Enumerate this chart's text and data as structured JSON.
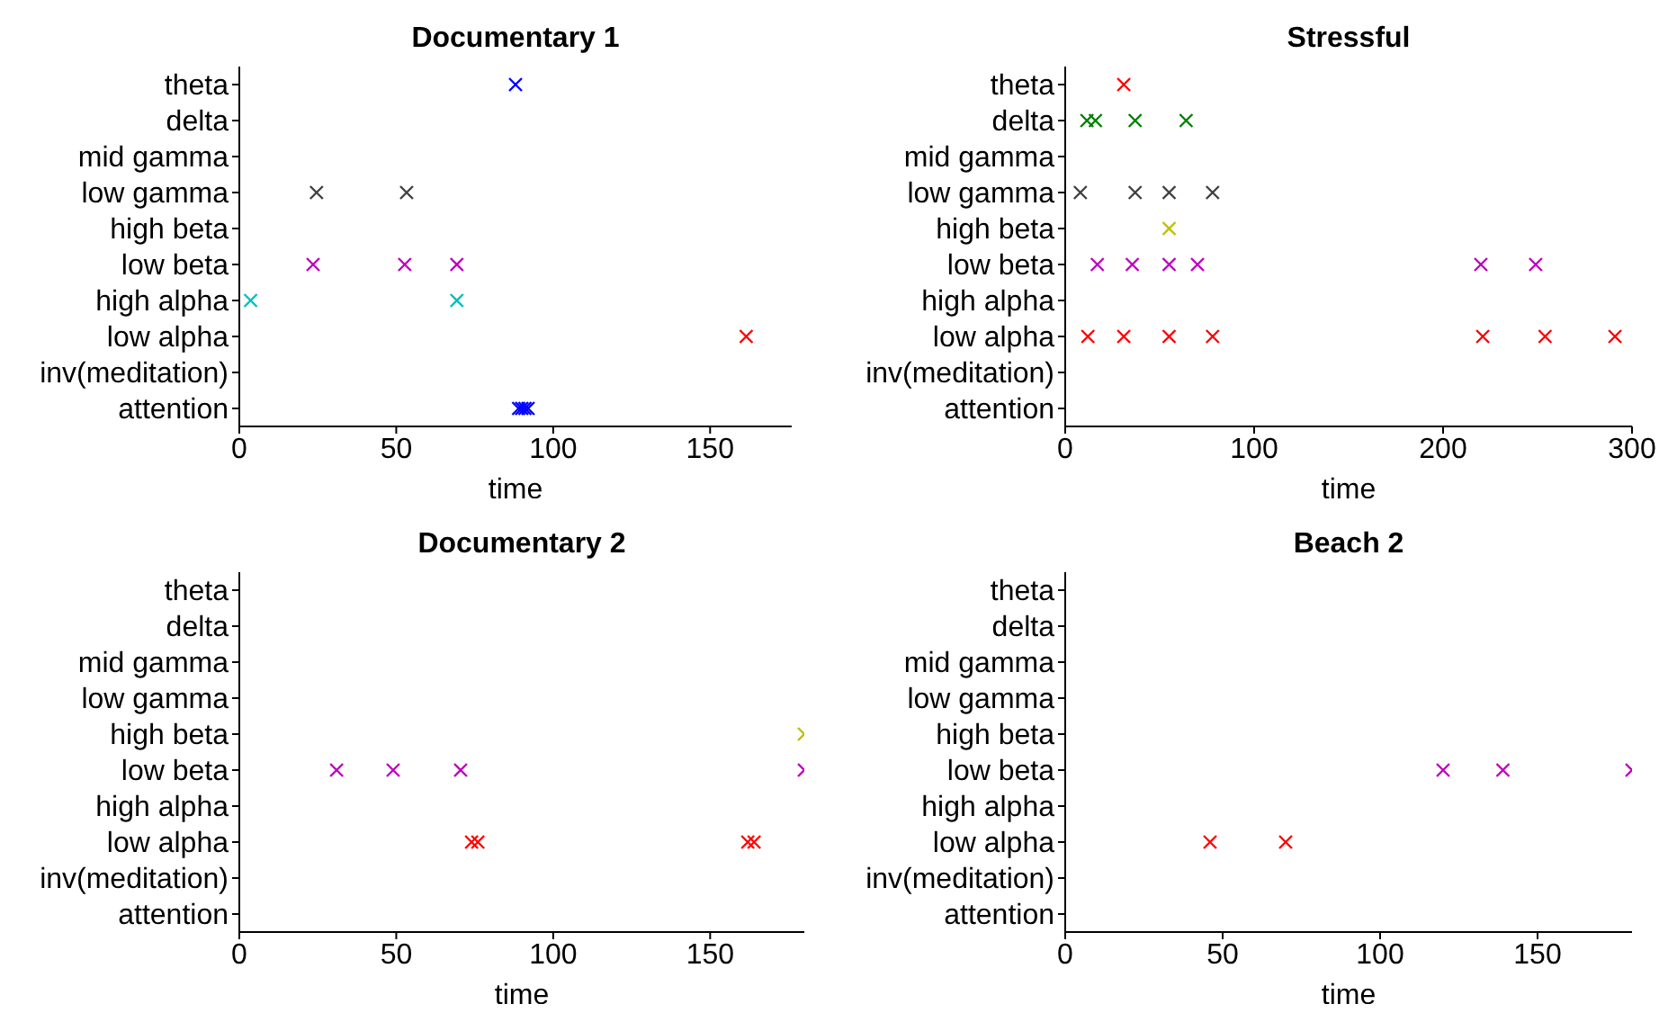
{
  "chart_data": [
    {
      "type": "scatter",
      "orientation": "horizontal",
      "title": "Documentary 1",
      "xlabel": "time",
      "xlim": [
        0,
        176
      ],
      "xticks": [
        0,
        50,
        100,
        150
      ],
      "categories": [
        "theta",
        "delta",
        "mid gamma",
        "low gamma",
        "high beta",
        "low beta",
        "high alpha",
        "low alpha",
        "inv(meditation)",
        "attention"
      ],
      "marker": "cross",
      "grid": false,
      "series": [
        {
          "values": [
            88,
            null,
            null,
            24.6,
            null,
            23.5,
            3.6,
            161.5,
            null,
            89
          ],
          "colors": [
            "#0000ff",
            null,
            null,
            "#404040",
            null,
            "#bf00bf",
            "#00bfbf",
            "#ff0000",
            null,
            "#0000ff"
          ]
        },
        {
          "values": [
            null,
            null,
            null,
            53.3,
            null,
            52.7,
            69.3,
            null,
            null,
            90
          ],
          "colors": [
            null,
            null,
            null,
            "#404040",
            null,
            "#bf00bf",
            "#00bfbf",
            null,
            null,
            "#0000ff"
          ]
        },
        {
          "values": [
            null,
            null,
            null,
            null,
            null,
            69.3,
            null,
            null,
            null,
            91
          ],
          "colors": [
            null,
            null,
            null,
            null,
            null,
            "#bf00bf",
            null,
            null,
            null,
            "#0000ff"
          ]
        },
        {
          "values": [
            null,
            null,
            null,
            null,
            null,
            null,
            null,
            null,
            null,
            92
          ],
          "colors": [
            null,
            null,
            null,
            null,
            null,
            null,
            null,
            null,
            null,
            "#0000ff"
          ]
        }
      ]
    },
    {
      "type": "scatter",
      "orientation": "horizontal",
      "title": "Stressful",
      "xlabel": "time",
      "xlim": [
        0,
        300
      ],
      "xticks": [
        0,
        100,
        200,
        300
      ],
      "categories": [
        "theta",
        "delta",
        "mid gamma",
        "low gamma",
        "high beta",
        "low beta",
        "high alpha",
        "low alpha",
        "inv(meditation)",
        "attention"
      ],
      "marker": "cross",
      "grid": false,
      "series": [
        {
          "values": [
            31,
            11.5,
            null,
            8,
            55,
            17,
            null,
            12,
            null,
            null
          ],
          "colors": [
            "#ff0000",
            "#008000",
            null,
            "#404040",
            "#bfbf00",
            "#bf00bf",
            null,
            "#ff0000",
            null,
            null
          ]
        },
        {
          "values": [
            null,
            16,
            null,
            37,
            null,
            35.5,
            null,
            31,
            null,
            null
          ],
          "colors": [
            null,
            "#008000",
            null,
            "#404040",
            null,
            "#bf00bf",
            null,
            "#ff0000",
            null,
            null
          ]
        },
        {
          "values": [
            null,
            37,
            null,
            55,
            null,
            55,
            null,
            55,
            null,
            null
          ],
          "colors": [
            null,
            "#008000",
            null,
            "#404040",
            null,
            "#bf00bf",
            null,
            "#ff0000",
            null,
            null
          ]
        },
        {
          "values": [
            null,
            64,
            null,
            78,
            null,
            70,
            null,
            78,
            null,
            null
          ],
          "colors": [
            null,
            "#008000",
            null,
            "#404040",
            null,
            "#bf00bf",
            null,
            "#ff0000",
            null,
            null
          ]
        },
        {
          "values": [
            null,
            null,
            null,
            null,
            null,
            220,
            null,
            221,
            null,
            null
          ],
          "colors": [
            null,
            null,
            null,
            null,
            null,
            "#bf00bf",
            null,
            "#ff0000",
            null,
            null
          ]
        },
        {
          "values": [
            null,
            null,
            null,
            null,
            null,
            249,
            null,
            254,
            null,
            null
          ],
          "colors": [
            null,
            null,
            null,
            null,
            null,
            "#bf00bf",
            null,
            "#ff0000",
            null,
            null
          ]
        },
        {
          "values": [
            null,
            null,
            null,
            null,
            null,
            null,
            null,
            291,
            null,
            null
          ],
          "colors": [
            null,
            null,
            null,
            null,
            null,
            null,
            null,
            "#ff0000",
            null,
            null
          ]
        }
      ]
    },
    {
      "type": "scatter",
      "orientation": "horizontal",
      "title": "Documentary 2",
      "xlabel": "time",
      "xlim": [
        0,
        180
      ],
      "xticks": [
        0,
        50,
        100,
        150
      ],
      "categories": [
        "theta",
        "delta",
        "mid gamma",
        "low gamma",
        "high beta",
        "low beta",
        "high alpha",
        "low alpha",
        "inv(meditation)",
        "attention"
      ],
      "marker": "cross",
      "grid": false,
      "series": [
        {
          "values": [
            null,
            null,
            null,
            null,
            180,
            31,
            null,
            74,
            null,
            null
          ],
          "colors": [
            null,
            null,
            null,
            null,
            "#bfbf00",
            "#bf00bf",
            null,
            "#ff0000",
            null,
            null
          ]
        },
        {
          "values": [
            null,
            null,
            null,
            null,
            null,
            49,
            null,
            76,
            null,
            null
          ],
          "colors": [
            null,
            null,
            null,
            null,
            null,
            "#bf00bf",
            null,
            "#ff0000",
            null,
            null
          ]
        },
        {
          "values": [
            null,
            null,
            null,
            null,
            null,
            70.5,
            null,
            162,
            null,
            null
          ],
          "colors": [
            null,
            null,
            null,
            null,
            null,
            "#bf00bf",
            null,
            "#ff0000",
            null,
            null
          ]
        },
        {
          "values": [
            null,
            null,
            null,
            null,
            null,
            180,
            null,
            164,
            null,
            null
          ],
          "colors": [
            null,
            null,
            null,
            null,
            null,
            "#bf00bf",
            null,
            "#ff0000",
            null,
            null
          ]
        }
      ]
    },
    {
      "type": "scatter",
      "orientation": "horizontal",
      "title": "Beach 2",
      "xlabel": "time",
      "xlim": [
        0,
        180
      ],
      "xticks": [
        0,
        50,
        100,
        150
      ],
      "categories": [
        "theta",
        "delta",
        "mid gamma",
        "low gamma",
        "high beta",
        "low beta",
        "high alpha",
        "low alpha",
        "inv(meditation)",
        "attention"
      ],
      "marker": "cross",
      "grid": false,
      "series": [
        {
          "values": [
            null,
            null,
            null,
            null,
            null,
            120,
            null,
            46,
            null,
            null
          ],
          "colors": [
            null,
            null,
            null,
            null,
            null,
            "#bf00bf",
            null,
            "#ff0000",
            null,
            null
          ]
        },
        {
          "values": [
            null,
            null,
            null,
            null,
            null,
            139,
            null,
            70,
            null,
            null
          ],
          "colors": [
            null,
            null,
            null,
            null,
            null,
            "#bf00bf",
            null,
            "#ff0000",
            null,
            null
          ]
        },
        {
          "values": [
            null,
            null,
            null,
            null,
            null,
            180,
            null,
            null,
            null,
            null
          ],
          "colors": [
            null,
            null,
            null,
            null,
            null,
            "#bf00bf",
            null,
            null,
            null,
            null
          ]
        }
      ]
    }
  ]
}
